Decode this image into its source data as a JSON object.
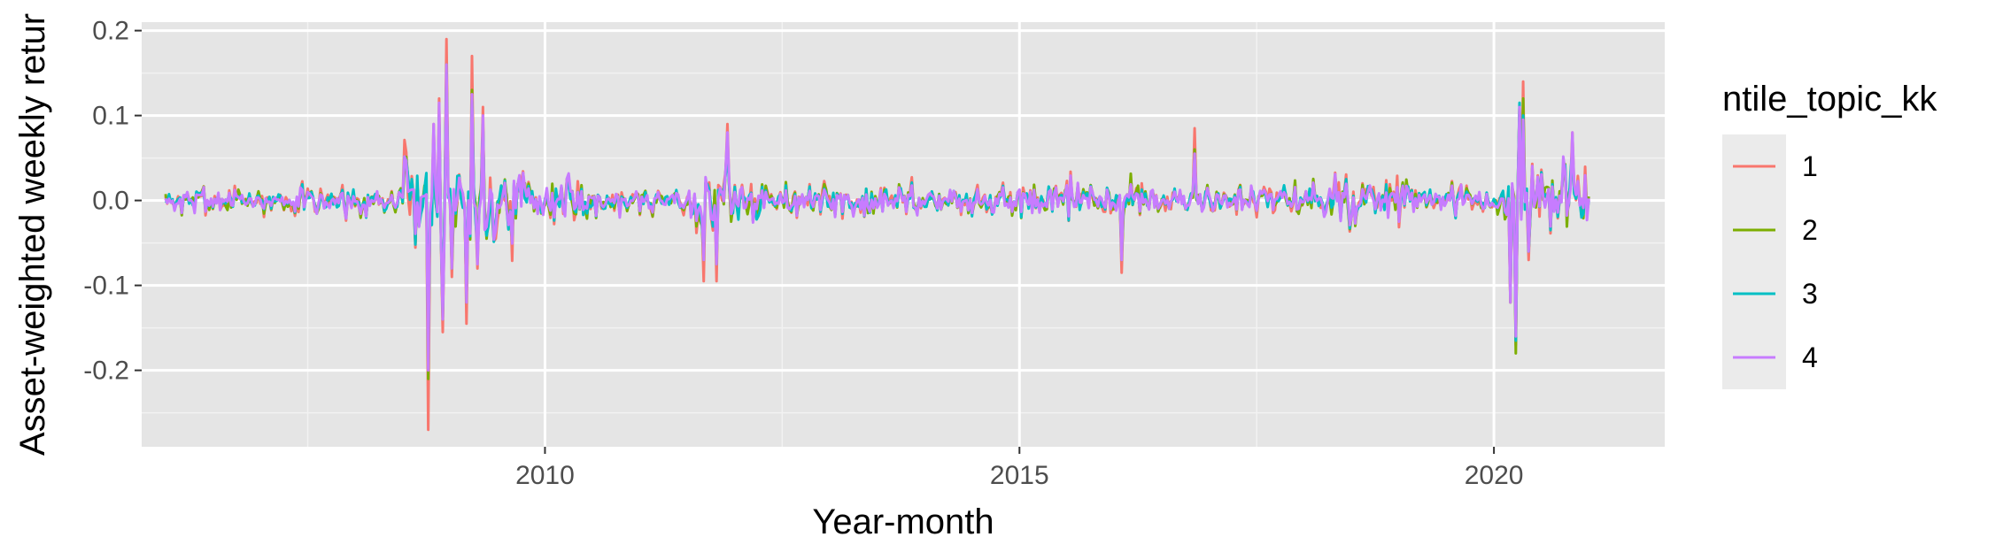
{
  "chart_data": {
    "type": "line",
    "xlabel": "Year-month",
    "ylabel": "Asset-weighted weekly retur",
    "xlim": [
      2005.75,
      2021.8
    ],
    "ylim": [
      -0.29,
      0.21
    ],
    "x_ticks": [
      2010,
      2015,
      2020
    ],
    "x_tick_labels": [
      "2010",
      "2015",
      "2020"
    ],
    "y_ticks": [
      -0.2,
      -0.1,
      0.0,
      0.1,
      0.2
    ],
    "y_tick_labels": [
      "-0.2",
      "-0.1",
      "0.0",
      "0.1",
      "0.2"
    ],
    "grid": true,
    "legend_title": "ntile_topic_kk",
    "legend_position": "right",
    "x_range": [
      2006.0,
      2021.0
    ],
    "frequency": "weekly",
    "series": [
      {
        "name": "1",
        "color": "#F8766D",
        "scale": 1.1,
        "seed": 11
      },
      {
        "name": "2",
        "color": "#7CAE00",
        "scale": 1.02,
        "seed": 23
      },
      {
        "name": "3",
        "color": "#00BFC4",
        "scale": 0.96,
        "seed": 37
      },
      {
        "name": "4",
        "color": "#C77CFF",
        "scale": 0.98,
        "seed": 53
      }
    ],
    "events": [
      {
        "x": 2008.76,
        "values": [
          -0.27,
          -0.21,
          -0.18,
          -0.2
        ]
      },
      {
        "x": 2008.83,
        "values": [
          0.09,
          0.07,
          0.08,
          0.09
        ]
      },
      {
        "x": 2008.88,
        "values": [
          0.12,
          0.1,
          0.1,
          0.115
        ]
      },
      {
        "x": 2008.93,
        "values": [
          -0.155,
          -0.14,
          -0.13,
          -0.14
        ]
      },
      {
        "x": 2008.96,
        "values": [
          0.19,
          0.16,
          0.15,
          0.16
        ]
      },
      {
        "x": 2009.02,
        "values": [
          -0.09,
          -0.08,
          -0.07,
          -0.08
        ]
      },
      {
        "x": 2009.17,
        "values": [
          -0.145,
          -0.12,
          -0.11,
          -0.12
        ]
      },
      {
        "x": 2009.23,
        "values": [
          0.17,
          0.13,
          0.12,
          0.125
        ]
      },
      {
        "x": 2009.29,
        "values": [
          -0.08,
          -0.07,
          -0.06,
          -0.075
        ]
      },
      {
        "x": 2009.35,
        "values": [
          0.11,
          0.09,
          0.09,
          0.1
        ]
      },
      {
        "x": 2011.68,
        "values": [
          -0.095,
          -0.07,
          -0.06,
          -0.07
        ]
      },
      {
        "x": 2011.8,
        "values": [
          -0.095,
          -0.075,
          -0.07,
          -0.075
        ]
      },
      {
        "x": 2011.92,
        "values": [
          0.09,
          0.07,
          0.06,
          0.08
        ]
      },
      {
        "x": 2016.07,
        "values": [
          -0.085,
          -0.07,
          -0.06,
          -0.07
        ]
      },
      {
        "x": 2016.85,
        "values": [
          0.085,
          0.06,
          0.05,
          0.055
        ]
      },
      {
        "x": 2020.18,
        "values": [
          -0.12,
          -0.12,
          -0.11,
          -0.12
        ]
      },
      {
        "x": 2020.23,
        "values": [
          -0.17,
          -0.18,
          -0.165,
          -0.16
        ]
      },
      {
        "x": 2020.27,
        "values": [
          0.11,
          0.11,
          0.115,
          0.11
        ]
      },
      {
        "x": 2020.31,
        "values": [
          0.14,
          0.12,
          0.1,
          0.095
        ]
      },
      {
        "x": 2020.36,
        "values": [
          -0.07,
          -0.06,
          -0.06,
          -0.06
        ]
      },
      {
        "x": 2020.83,
        "values": [
          0.08,
          0.07,
          0.06,
          0.08
        ]
      }
    ]
  }
}
